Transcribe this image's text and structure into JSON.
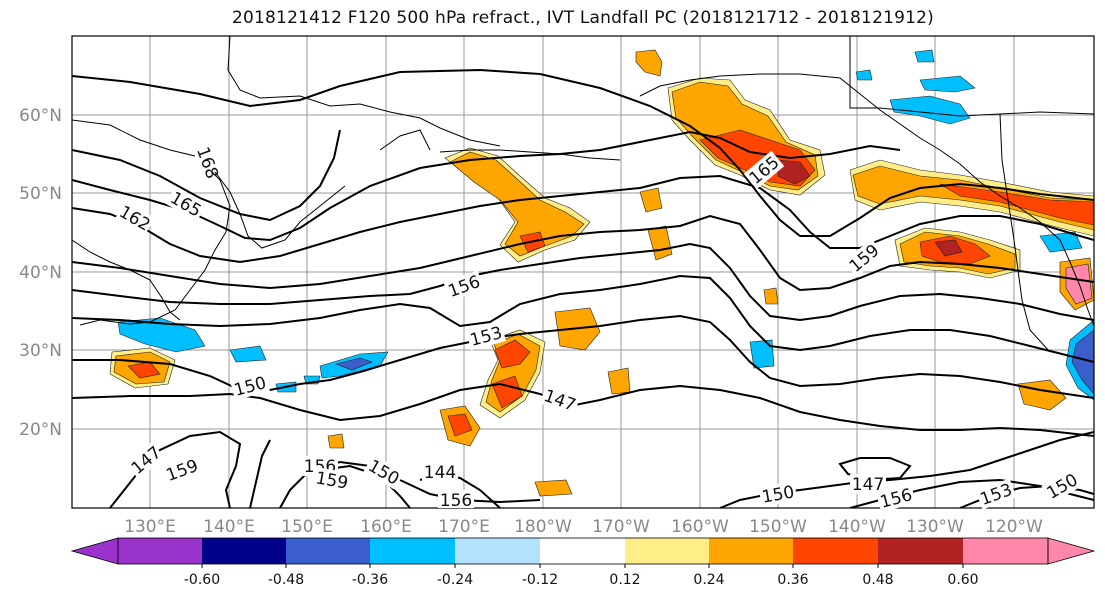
{
  "title": "2018121412 F120 500 hPa refract., IVT Landfall PC (2018121712 - 2018121912)",
  "lat_labels": [
    "60°N",
    "50°N",
    "40°N",
    "30°N",
    "20°N"
  ],
  "lon_labels": [
    "130°E",
    "140°E",
    "150°E",
    "160°E",
    "170°E",
    "180°W",
    "170°W",
    "160°W",
    "150°W",
    "140°W",
    "130°W",
    "120°W"
  ],
  "contour_labels": [
    "168",
    "165",
    "162",
    "165",
    "159",
    "156",
    "153",
    "150",
    "147",
    "144",
    "147",
    "159",
    "156",
    "159",
    "150",
    "156",
    "150",
    "147",
    "156",
    "153",
    "150"
  ],
  "colorbar": {
    "ticks": [
      "-0.60",
      "-0.48",
      "-0.36",
      "-0.24",
      "-0.12",
      "0.12",
      "0.24",
      "0.36",
      "0.48",
      "0.60"
    ],
    "colors": [
      "#9933cc",
      "#00008b",
      "#3a5fcd",
      "#00bfff",
      "#b2e2ff",
      "#ffffff",
      "#ffee88",
      "#ffa500",
      "#ff4500",
      "#b22222",
      "#ff88aa"
    ]
  },
  "fill_colors": {
    "yellow": "#ffee88",
    "orange": "#ffa500",
    "red": "#ff4500",
    "darkred": "#b22222",
    "pink": "#ff88aa",
    "lightblue": "#b2e2ff",
    "cyan": "#00bfff",
    "blue": "#3a5fcd",
    "navy": "#00008b"
  }
}
